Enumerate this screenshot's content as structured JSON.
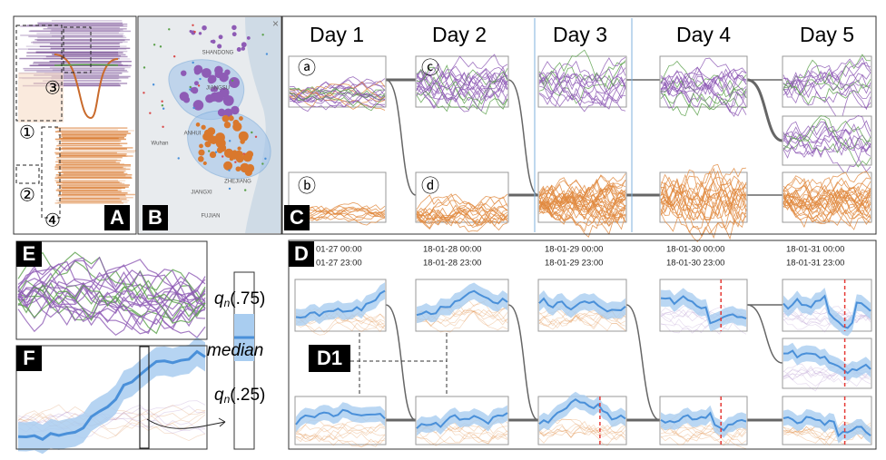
{
  "panel_labels": {
    "a": "A",
    "b": "B",
    "c": "C",
    "d": "D",
    "e": "E",
    "f": "F",
    "d1": "D1"
  },
  "panel_a": {
    "markers": [
      "③",
      "①",
      "②",
      "④"
    ]
  },
  "map": {
    "close": "×",
    "places": [
      "SHANDONG",
      "JIANGSU",
      "ANHUI",
      "ZHEJIANG",
      "Wuhan",
      "JIANGXI",
      "FUJIAN"
    ]
  },
  "view_c": {
    "days": [
      "Day 1",
      "Day 2",
      "Day 3",
      "Day 4",
      "Day 5"
    ],
    "clusters": [
      "ⓐ",
      "ⓑ",
      "ⓒ",
      "ⓓ"
    ]
  },
  "view_d": {
    "time_ranges": [
      [
        "01-27 00:00",
        "01-27 23:00"
      ],
      [
        "18-01-28 00:00",
        "18-01-28 23:00"
      ],
      [
        "18-01-29 00:00",
        "18-01-29 23:00"
      ],
      [
        "18-01-30 00:00",
        "18-01-30 23:00"
      ],
      [
        "18-01-31 00:00",
        "18-01-31 23:00"
      ]
    ]
  },
  "quantiles": {
    "upper": {
      "symbol": "q",
      "sub": "n",
      "arg": "(.75)"
    },
    "middle": "median",
    "lower": {
      "symbol": "q",
      "sub": "n",
      "arg": "(.25)"
    }
  }
}
